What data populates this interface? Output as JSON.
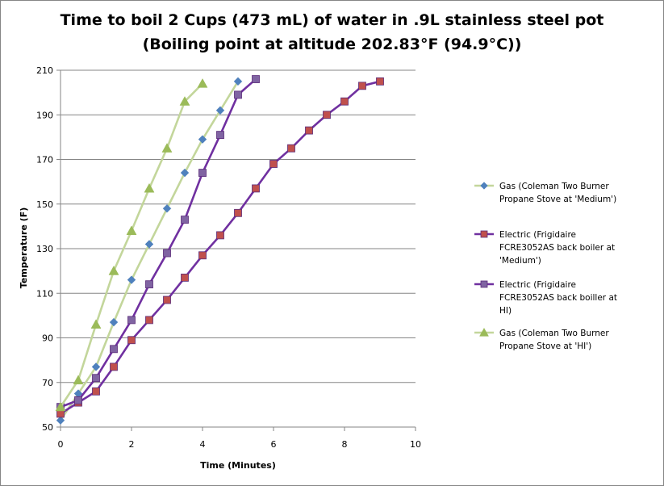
{
  "chart_data": {
    "type": "line",
    "title_line1": "Time to boil 2 Cups (473 mL) of water in .9L stainless steel pot",
    "title_line2": "(Boiling point at altitude 202.83°F (94.9°C))",
    "xlabel": "Time (Minutes)",
    "ylabel": "Temperature (F)",
    "xlim": [
      0,
      10
    ],
    "ylim": [
      50,
      210
    ],
    "xticks": [
      0,
      2,
      4,
      6,
      8,
      10
    ],
    "yticks": [
      50,
      70,
      90,
      110,
      130,
      150,
      170,
      190,
      210
    ],
    "grid": "horizontal",
    "legend_position": "right",
    "series": [
      {
        "name_lines": [
          "Gas (Coleman Two Burner",
          "Propane Stove at 'Medium')"
        ],
        "marker": "diamond",
        "line_color": "#c3d69b",
        "marker_color": "#4f81bd",
        "x": [
          0,
          0.5,
          1,
          1.5,
          2,
          2.5,
          3,
          3.5,
          4,
          4.5,
          5
        ],
        "y": [
          53,
          65,
          77,
          97,
          116,
          132,
          148,
          164,
          179,
          192,
          205
        ]
      },
      {
        "name_lines": [
          "Electric (Frigidaire",
          "FCRE3052AS back boiler at",
          "'Medium')"
        ],
        "marker": "square",
        "line_color": "#7030a0",
        "marker_color": "#c0504d",
        "x": [
          0,
          0.5,
          1,
          1.5,
          2,
          2.5,
          3,
          3.5,
          4,
          4.5,
          5,
          5.5,
          6,
          6.5,
          7,
          7.5,
          8,
          8.5,
          9
        ],
        "y": [
          56,
          61,
          66,
          77,
          89,
          98,
          107,
          117,
          127,
          136,
          146,
          157,
          168,
          175,
          183,
          190,
          196,
          203,
          205
        ]
      },
      {
        "name_lines": [
          "Electric (Frigidaire",
          "FCRE3052AS back boiller at",
          "HI)"
        ],
        "marker": "square",
        "line_color": "#7030a0",
        "marker_color": "#8064a2",
        "x": [
          0,
          0.5,
          1,
          1.5,
          2,
          2.5,
          3,
          3.5,
          4,
          4.5,
          5,
          5.5
        ],
        "y": [
          59,
          62,
          72,
          85,
          98,
          114,
          128,
          143,
          164,
          181,
          199,
          206
        ]
      },
      {
        "name_lines": [
          "Gas (Coleman Two Burner",
          "Propane Stove at 'HI')"
        ],
        "marker": "triangle",
        "line_color": "#c3d69b",
        "marker_color": "#9bbb59",
        "x": [
          0,
          0.5,
          1,
          1.5,
          2,
          2.5,
          3,
          3.5,
          4
        ],
        "y": [
          59,
          71,
          96,
          120,
          138,
          157,
          175,
          196,
          204
        ]
      }
    ]
  }
}
